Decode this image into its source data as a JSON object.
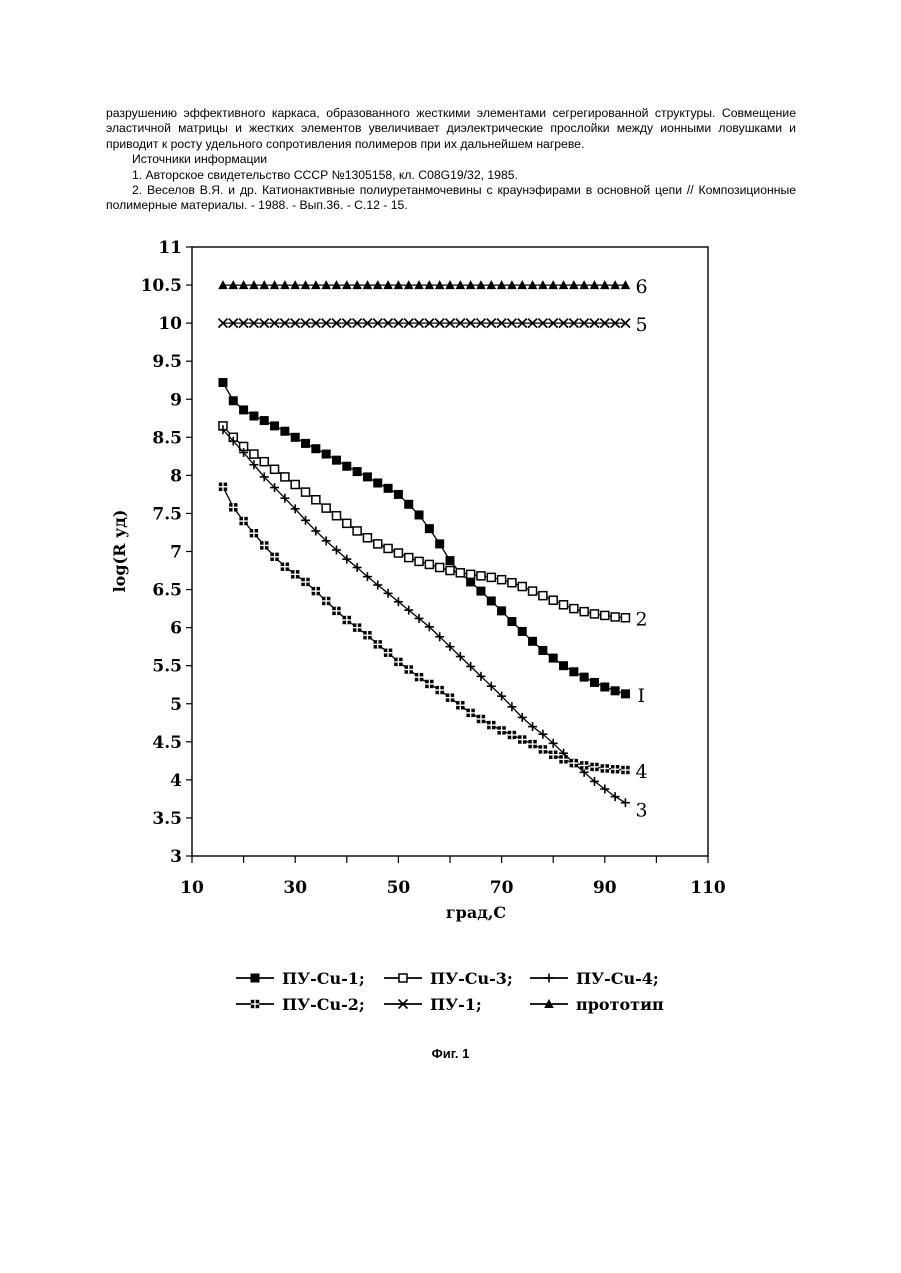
{
  "text": {
    "p1": "разрушению эффективного каркаса, образованного жесткими элементами сегрегированной структуры. Совмещение эластичной матрицы и жестких элементов увеличивает диэлектрические прослойки между ионными ловушками и приводит к росту удельного сопротивления полимеров при их дальнейшем нагреве.",
    "p2": "Источники информации",
    "p3": "1. Авторское свидетельство СССР №1305158, кл. C08G19/32, 1985.",
    "p4": "2. Веселов В.Я. и др. Катионактивные полиуретанмочевины с краунэфирами в основной цепи // Композиционные полимерные материалы. - 1988. - Вып.36. - С.12 - 15."
  },
  "figure_caption": "Фиг. 1",
  "chart_data": {
    "type": "line",
    "xlabel": "град,С",
    "ylabel": "log(R уд)",
    "xlim": [
      10,
      110
    ],
    "ylim": [
      3,
      11
    ],
    "x_ticks": [
      "10",
      "30",
      "50",
      "70",
      "90",
      "110"
    ],
    "y_ticks": [
      "3",
      "3.5",
      "4",
      "4.5",
      "5",
      "5.5",
      "6",
      "6.5",
      "7",
      "7.5",
      "8",
      "8.5",
      "9",
      "9.5",
      "10",
      "10.5",
      "11"
    ],
    "grid": false,
    "legend_position": "bottom",
    "series": [
      {
        "name": "ПУ-Cu-1;",
        "marker": "filled-square",
        "end_label": "I",
        "x": [
          16,
          18,
          20,
          22,
          24,
          26,
          28,
          30,
          32,
          34,
          36,
          38,
          40,
          42,
          44,
          46,
          48,
          50,
          52,
          54,
          56,
          58,
          60,
          62,
          64,
          66,
          68,
          70,
          72,
          74,
          76,
          78,
          80,
          82,
          84,
          86,
          88,
          90,
          92,
          94
        ],
        "values": [
          9.22,
          8.98,
          8.86,
          8.78,
          8.72,
          8.65,
          8.58,
          8.5,
          8.42,
          8.35,
          8.28,
          8.2,
          8.12,
          8.05,
          7.98,
          7.9,
          7.83,
          7.75,
          7.62,
          7.48,
          7.3,
          7.1,
          6.88,
          6.72,
          6.6,
          6.48,
          6.35,
          6.22,
          6.08,
          5.95,
          5.82,
          5.7,
          5.6,
          5.5,
          5.42,
          5.35,
          5.28,
          5.22,
          5.17,
          5.13
        ]
      },
      {
        "name": "ПУ-Cu-3;",
        "marker": "open-square",
        "end_label": "2",
        "x": [
          16,
          18,
          20,
          22,
          24,
          26,
          28,
          30,
          32,
          34,
          36,
          38,
          40,
          42,
          44,
          46,
          48,
          50,
          52,
          54,
          56,
          58,
          60,
          62,
          64,
          66,
          68,
          70,
          72,
          74,
          76,
          78,
          80,
          82,
          84,
          86,
          88,
          90,
          92,
          94
        ],
        "values": [
          8.65,
          8.5,
          8.38,
          8.28,
          8.18,
          8.08,
          7.98,
          7.88,
          7.78,
          7.68,
          7.57,
          7.47,
          7.37,
          7.27,
          7.18,
          7.1,
          7.04,
          6.98,
          6.92,
          6.87,
          6.83,
          6.79,
          6.75,
          6.72,
          6.7,
          6.68,
          6.66,
          6.63,
          6.59,
          6.54,
          6.48,
          6.42,
          6.36,
          6.3,
          6.25,
          6.21,
          6.18,
          6.16,
          6.14,
          6.13
        ]
      },
      {
        "name": "ПУ-Cu-4;",
        "marker": "plus",
        "end_label": "3",
        "x": [
          16,
          18,
          20,
          22,
          24,
          26,
          28,
          30,
          32,
          34,
          36,
          38,
          40,
          42,
          44,
          46,
          48,
          50,
          52,
          54,
          56,
          58,
          60,
          62,
          64,
          66,
          68,
          70,
          72,
          74,
          76,
          78,
          80,
          82,
          84,
          86,
          88,
          90,
          92,
          94
        ],
        "values": [
          8.6,
          8.45,
          8.3,
          8.14,
          7.98,
          7.84,
          7.7,
          7.56,
          7.41,
          7.27,
          7.14,
          7.02,
          6.9,
          6.79,
          6.67,
          6.56,
          6.45,
          6.34,
          6.23,
          6.12,
          6.01,
          5.88,
          5.75,
          5.62,
          5.49,
          5.36,
          5.23,
          5.1,
          4.96,
          4.82,
          4.7,
          4.6,
          4.48,
          4.35,
          4.22,
          4.1,
          3.98,
          3.88,
          3.78,
          3.7
        ]
      },
      {
        "name": "ПУ-Cu-2;",
        "marker": "crossed-square",
        "end_label": "4",
        "x": [
          16,
          18,
          20,
          22,
          24,
          26,
          28,
          30,
          32,
          34,
          36,
          38,
          40,
          42,
          44,
          46,
          48,
          50,
          52,
          54,
          56,
          58,
          60,
          62,
          64,
          66,
          68,
          70,
          72,
          74,
          76,
          78,
          80,
          82,
          84,
          86,
          88,
          90,
          92,
          94
        ],
        "values": [
          7.85,
          7.58,
          7.4,
          7.24,
          7.08,
          6.93,
          6.8,
          6.7,
          6.6,
          6.48,
          6.35,
          6.22,
          6.1,
          6.0,
          5.9,
          5.78,
          5.67,
          5.55,
          5.45,
          5.35,
          5.26,
          5.18,
          5.08,
          4.98,
          4.88,
          4.8,
          4.72,
          4.65,
          4.59,
          4.53,
          4.47,
          4.4,
          4.33,
          4.27,
          4.22,
          4.19,
          4.17,
          4.15,
          4.14,
          4.13
        ]
      },
      {
        "name": "ПУ-1;",
        "marker": "x",
        "end_label": "5",
        "x": [
          16,
          18,
          20,
          22,
          24,
          26,
          28,
          30,
          32,
          34,
          36,
          38,
          40,
          42,
          44,
          46,
          48,
          50,
          52,
          54,
          56,
          58,
          60,
          62,
          64,
          66,
          68,
          70,
          72,
          74,
          76,
          78,
          80,
          82,
          84,
          86,
          88,
          90,
          92,
          94
        ],
        "values": [
          10.0,
          10.0,
          10.0,
          10.0,
          10.0,
          10.0,
          10.0,
          10.0,
          10.0,
          10.0,
          10.0,
          10.0,
          10.0,
          10.0,
          10.0,
          10.0,
          10.0,
          10.0,
          10.0,
          10.0,
          10.0,
          10.0,
          10.0,
          10.0,
          10.0,
          10.0,
          10.0,
          10.0,
          10.0,
          10.0,
          10.0,
          10.0,
          10.0,
          10.0,
          10.0,
          10.0,
          10.0,
          10.0,
          10.0,
          10.0
        ]
      },
      {
        "name": "прототип",
        "marker": "filled-triangle",
        "end_label": "6",
        "x": [
          16,
          18,
          20,
          22,
          24,
          26,
          28,
          30,
          32,
          34,
          36,
          38,
          40,
          42,
          44,
          46,
          48,
          50,
          52,
          54,
          56,
          58,
          60,
          62,
          64,
          66,
          68,
          70,
          72,
          74,
          76,
          78,
          80,
          82,
          84,
          86,
          88,
          90,
          92,
          94
        ],
        "values": [
          10.5,
          10.5,
          10.5,
          10.5,
          10.5,
          10.5,
          10.5,
          10.5,
          10.5,
          10.5,
          10.5,
          10.5,
          10.5,
          10.5,
          10.5,
          10.5,
          10.5,
          10.5,
          10.5,
          10.5,
          10.5,
          10.5,
          10.5,
          10.5,
          10.5,
          10.5,
          10.5,
          10.5,
          10.5,
          10.5,
          10.5,
          10.5,
          10.5,
          10.5,
          10.5,
          10.5,
          10.5,
          10.5,
          10.5,
          10.5
        ]
      }
    ]
  }
}
